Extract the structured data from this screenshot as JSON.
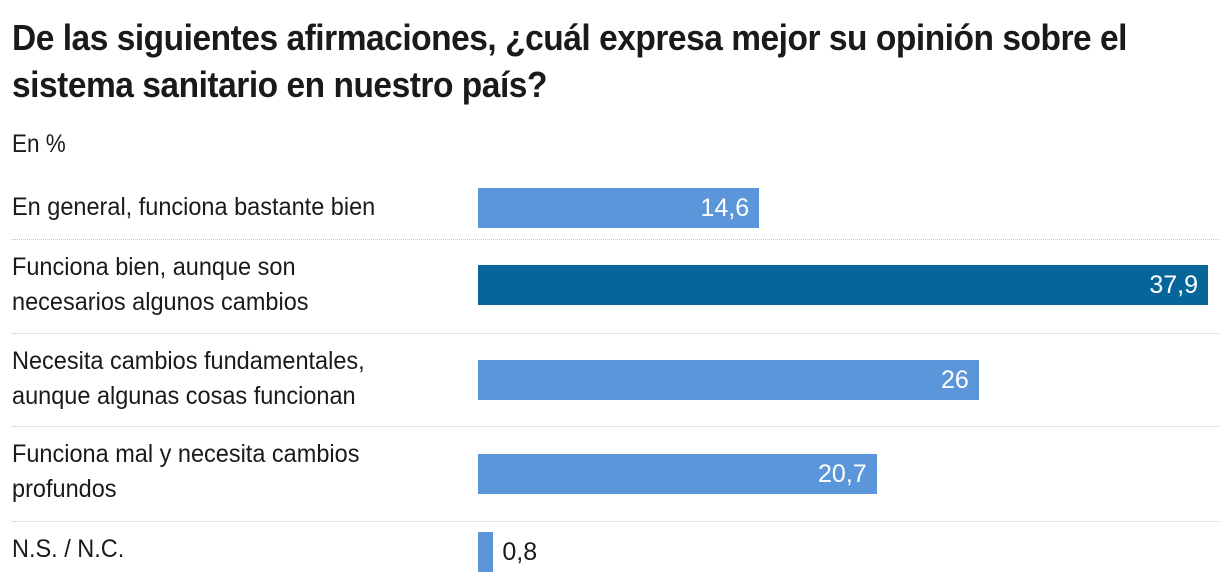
{
  "chart_data": {
    "type": "bar",
    "orientation": "horizontal",
    "title": "De las siguientes afirmaciones, ¿cuál expresa mejor su opinión sobre el sistema sanitario en nuestro país?",
    "subtitle": "En %",
    "xlabel": "",
    "ylabel": "",
    "xlim": [
      0,
      37.9
    ],
    "grid": false,
    "legend": "none",
    "categories": [
      "En general, funciona bastante bien",
      "Funciona bien, aunque son necesarios algunos cambios",
      "Necesita cambios fundamentales, aunque algunas cosas funcionan",
      "Funciona mal y necesita cambios profundos",
      "N.S. / N.C."
    ],
    "label_lines": [
      [
        "En general, funciona bastante bien"
      ],
      [
        "Funciona bien, aunque son",
        "necesarios algunos cambios"
      ],
      [
        "Necesita cambios fundamentales,",
        "aunque algunas cosas funcionan"
      ],
      [
        "Funciona mal y necesita cambios",
        "profundos"
      ],
      [
        "N.S. / N.C."
      ]
    ],
    "values": [
      14.6,
      37.9,
      26,
      20.7,
      0.8
    ],
    "value_labels": [
      "14,6",
      "37,9",
      "26",
      "20,7",
      "0,8"
    ],
    "highlight_index": 1,
    "colors": {
      "default": "#5b96da",
      "highlight": "#066699",
      "divider": "#c8c8c8"
    }
  }
}
